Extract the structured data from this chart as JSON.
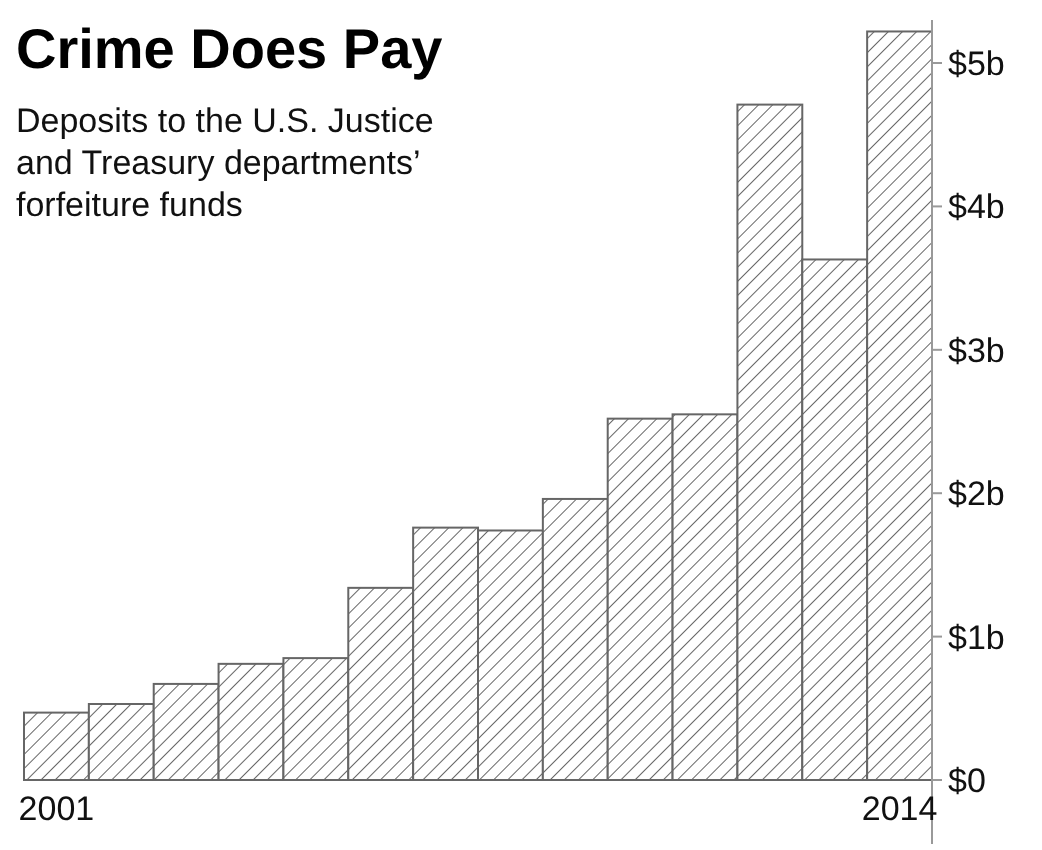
{
  "chart_data": {
    "type": "bar",
    "title": "Crime Does Pay",
    "subtitle": "Deposits to the U.S. Justice and Treasury departments’ forfeiture funds",
    "categories": [
      "2001",
      null,
      null,
      null,
      null,
      null,
      null,
      null,
      null,
      null,
      null,
      null,
      null,
      "2014"
    ],
    "values": [
      0.47,
      0.53,
      0.67,
      0.81,
      0.85,
      1.34,
      1.76,
      1.74,
      1.96,
      2.52,
      2.55,
      4.71,
      3.63,
      5.22
    ],
    "color": "#666666",
    "ylim": [
      0,
      5.3
    ],
    "yticks": [
      {
        "value": 0,
        "label": "$0"
      },
      {
        "value": 1,
        "label": "$1b"
      },
      {
        "value": 2,
        "label": "$2b"
      },
      {
        "value": 3,
        "label": "$3b"
      },
      {
        "value": 4,
        "label": "$4b"
      },
      {
        "value": 5,
        "label": "$5b"
      }
    ],
    "grid": false
  }
}
